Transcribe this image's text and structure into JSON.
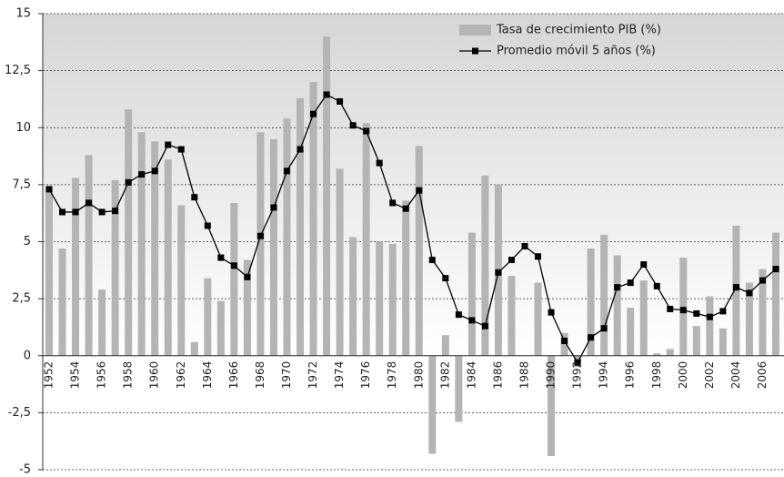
{
  "chart_data": {
    "type": "bar-line",
    "categories": [
      "1952",
      null,
      "1954",
      null,
      "1956",
      null,
      "1958",
      null,
      "1960",
      null,
      "1962",
      null,
      "1964",
      null,
      "1966",
      null,
      "1968",
      null,
      "1970",
      null,
      "1972",
      null,
      "1974",
      null,
      "1976",
      null,
      "1978",
      null,
      "1980",
      null,
      "1982",
      null,
      "1984",
      null,
      "1986",
      null,
      "1988",
      null,
      "1990",
      null,
      "1992",
      null,
      "1994",
      null,
      "1996",
      null,
      "1998",
      null,
      "2000",
      null,
      "2002",
      null,
      "2004",
      null,
      "2006",
      null
    ],
    "series": [
      {
        "name": "Tasa de crecimiento PIB (%)",
        "type": "bar",
        "color": "#b4b4b4",
        "values": [
          7.3,
          4.7,
          7.8,
          8.8,
          2.9,
          7.7,
          10.8,
          9.8,
          9.4,
          8.6,
          6.6,
          0.6,
          3.4,
          2.4,
          6.7,
          4.2,
          9.8,
          9.5,
          10.4,
          11.3,
          12.0,
          14.0,
          8.2,
          5.2,
          10.2,
          5.0,
          4.9,
          6.8,
          9.2,
          -4.3,
          0.9,
          -2.9,
          5.4,
          7.9,
          7.5,
          3.5,
          0,
          3.2,
          -4.4,
          1.0,
          -0.5,
          4.7,
          5.3,
          4.4,
          2.1,
          3.3,
          0.1,
          0.3,
          4.3,
          1.3,
          2.6,
          1.2,
          5.7,
          3.2,
          3.8,
          5.4
        ]
      },
      {
        "name": "Promedio móvil 5 años (%)",
        "type": "line",
        "color": "#000000",
        "values": [
          7.3,
          6.3,
          6.3,
          6.7,
          6.3,
          6.35,
          7.6,
          7.95,
          8.1,
          9.25,
          9.05,
          6.95,
          5.7,
          4.3,
          3.95,
          3.45,
          5.25,
          6.5,
          8.1,
          9.05,
          10.6,
          11.45,
          11.15,
          10.1,
          9.85,
          8.45,
          6.7,
          6.45,
          7.25,
          4.2,
          3.4,
          1.8,
          1.55,
          1.3,
          3.65,
          4.2,
          4.8,
          4.35,
          1.9,
          0.65,
          -0.3,
          0.8,
          1.2,
          3.0,
          3.2,
          4.0,
          3.05,
          2.05,
          2.0,
          1.85,
          1.7,
          1.95,
          3.0,
          2.75,
          3.3,
          3.8
        ]
      }
    ],
    "ylim": [
      -5,
      15
    ],
    "yticks": [
      -5,
      {
        "value": -2.5,
        "label": "-2,5"
      },
      0,
      {
        "value": 2.5,
        "label": "2,5"
      },
      5,
      {
        "value": 7.5,
        "label": "7,5"
      },
      10,
      {
        "value": 12.5,
        "label": "12,5"
      },
      15
    ],
    "grid": true
  }
}
